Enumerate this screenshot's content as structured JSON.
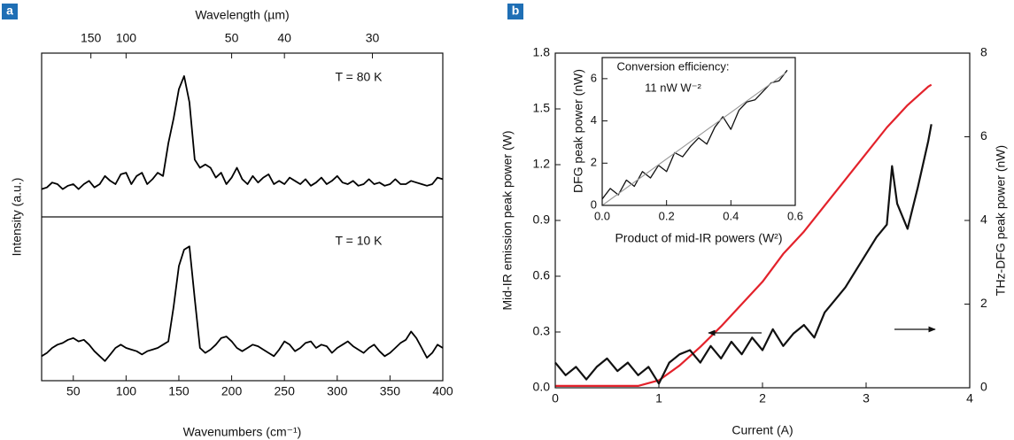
{
  "chart_data": [
    {
      "type": "line",
      "panel_label": "a",
      "stacked_panels": true,
      "xlabel": "Wavenumbers (cm⁻¹)",
      "x2label": "Wavelength (µm)",
      "ylabel": "Intensity (a.u.)",
      "x2_scale": "reciprocal-cm-um",
      "xlim": [
        20,
        400
      ],
      "xticks": [
        50,
        100,
        150,
        200,
        250,
        300,
        350,
        400
      ],
      "x2ticks": [
        150,
        100,
        50,
        40,
        30
      ],
      "ylim": [
        0,
        1
      ],
      "x": [
        20,
        25,
        30,
        35,
        40,
        45,
        50,
        55,
        60,
        65,
        70,
        75,
        80,
        85,
        90,
        95,
        100,
        105,
        110,
        115,
        120,
        125,
        130,
        135,
        140,
        145,
        150,
        155,
        160,
        165,
        170,
        175,
        180,
        185,
        190,
        195,
        200,
        205,
        210,
        215,
        220,
        225,
        230,
        235,
        240,
        245,
        250,
        255,
        260,
        265,
        270,
        275,
        280,
        285,
        290,
        295,
        300,
        305,
        310,
        315,
        320,
        325,
        330,
        335,
        340,
        345,
        350,
        355,
        360,
        365,
        370,
        375,
        380,
        385,
        390,
        395,
        400
      ],
      "series": [
        {
          "name": "T = 80 K",
          "color": "#000000",
          "values": [
            0.17,
            0.18,
            0.21,
            0.2,
            0.17,
            0.19,
            0.2,
            0.17,
            0.2,
            0.22,
            0.18,
            0.2,
            0.25,
            0.22,
            0.2,
            0.26,
            0.27,
            0.2,
            0.25,
            0.27,
            0.2,
            0.23,
            0.27,
            0.25,
            0.45,
            0.6,
            0.78,
            0.86,
            0.7,
            0.35,
            0.3,
            0.32,
            0.3,
            0.24,
            0.27,
            0.2,
            0.24,
            0.3,
            0.23,
            0.2,
            0.25,
            0.21,
            0.24,
            0.26,
            0.2,
            0.22,
            0.2,
            0.24,
            0.22,
            0.2,
            0.23,
            0.19,
            0.21,
            0.24,
            0.2,
            0.22,
            0.25,
            0.21,
            0.2,
            0.22,
            0.19,
            0.2,
            0.23,
            0.2,
            0.21,
            0.19,
            0.2,
            0.23,
            0.2,
            0.2,
            0.22,
            0.21,
            0.2,
            0.19,
            0.2,
            0.24,
            0.23
          ]
        },
        {
          "name": "T = 10 K",
          "color": "#000000",
          "values": [
            0.15,
            0.17,
            0.2,
            0.22,
            0.23,
            0.25,
            0.26,
            0.24,
            0.25,
            0.22,
            0.18,
            0.15,
            0.12,
            0.16,
            0.2,
            0.22,
            0.2,
            0.19,
            0.18,
            0.16,
            0.18,
            0.19,
            0.2,
            0.22,
            0.24,
            0.45,
            0.7,
            0.8,
            0.82,
            0.5,
            0.2,
            0.17,
            0.19,
            0.22,
            0.26,
            0.27,
            0.24,
            0.2,
            0.18,
            0.2,
            0.22,
            0.21,
            0.19,
            0.17,
            0.15,
            0.19,
            0.24,
            0.22,
            0.18,
            0.2,
            0.23,
            0.24,
            0.2,
            0.22,
            0.21,
            0.17,
            0.2,
            0.22,
            0.24,
            0.21,
            0.19,
            0.17,
            0.2,
            0.22,
            0.18,
            0.15,
            0.17,
            0.2,
            0.23,
            0.25,
            0.3,
            0.26,
            0.2,
            0.14,
            0.17,
            0.22,
            0.2
          ]
        }
      ]
    },
    {
      "type": "line",
      "panel_label": "b",
      "xlabel": "Current (A)",
      "ylabel": "Mid-IR emission peak power (W)",
      "y2label": "THz-DFG peak power (nW)",
      "xlim": [
        0,
        4
      ],
      "xticks": [
        0,
        1,
        2,
        3,
        4
      ],
      "ylim": [
        0,
        1.8
      ],
      "yticks": [
        {
          "value": 0,
          "label": "0.0"
        },
        0.3,
        0.6,
        0.9,
        1.2,
        1.5,
        1.8
      ],
      "y2lim": [
        0,
        8
      ],
      "y2ticks": [
        0,
        2,
        4,
        6,
        8
      ],
      "series": [
        {
          "color": "#e3222b",
          "x": [
            0,
            0.2,
            0.4,
            0.6,
            0.8,
            1.0,
            1.2,
            1.4,
            1.6,
            1.8,
            2.0,
            2.2,
            2.4,
            2.6,
            2.8,
            3.0,
            3.2,
            3.4,
            3.6,
            3.63
          ],
          "values": [
            0.01,
            0.01,
            0.01,
            0.01,
            0.01,
            0.04,
            0.12,
            0.22,
            0.33,
            0.45,
            0.57,
            0.72,
            0.84,
            0.98,
            1.12,
            1.26,
            1.4,
            1.52,
            1.62,
            1.63
          ]
        },
        {
          "color": "#111111",
          "axis": "y2",
          "x": [
            0,
            0.1,
            0.2,
            0.3,
            0.4,
            0.5,
            0.6,
            0.7,
            0.8,
            0.9,
            1.0,
            1.1,
            1.2,
            1.3,
            1.4,
            1.5,
            1.6,
            1.7,
            1.8,
            1.9,
            2.0,
            2.1,
            2.2,
            2.3,
            2.4,
            2.5,
            2.6,
            2.7,
            2.8,
            2.9,
            3.0,
            3.1,
            3.2,
            3.25,
            3.3,
            3.4,
            3.5,
            3.6,
            3.63
          ],
          "values": [
            0.6,
            0.3,
            0.5,
            0.2,
            0.5,
            0.7,
            0.4,
            0.6,
            0.3,
            0.5,
            0.1,
            0.6,
            0.8,
            0.9,
            0.6,
            1.0,
            0.7,
            1.1,
            0.8,
            1.2,
            0.9,
            1.4,
            1.0,
            1.3,
            1.5,
            1.2,
            1.8,
            2.1,
            2.4,
            2.8,
            3.2,
            3.6,
            3.9,
            5.3,
            4.4,
            3.8,
            4.8,
            5.9,
            6.3
          ]
        }
      ]
    },
    {
      "type": "line",
      "annotation": [
        "Conversion efficiency:",
        "11 nW W⁻²"
      ],
      "xlabel": "Product of mid-IR powers (W²)",
      "ylabel": "DFG peak power (nW)",
      "xlim": [
        0,
        0.6
      ],
      "xticks": [
        {
          "value": 0,
          "label": "0.0"
        },
        0.2,
        0.4,
        0.6
      ],
      "ylim": [
        0,
        7
      ],
      "yticks": [
        0,
        2,
        4,
        6
      ],
      "series": [
        {
          "color": "#111111",
          "x": [
            0,
            0.025,
            0.05,
            0.075,
            0.1,
            0.125,
            0.15,
            0.175,
            0.2,
            0.225,
            0.25,
            0.275,
            0.3,
            0.325,
            0.35,
            0.375,
            0.4,
            0.425,
            0.45,
            0.475,
            0.5,
            0.525,
            0.55,
            0.575
          ],
          "values": [
            0.3,
            0.8,
            0.5,
            1.2,
            0.9,
            1.6,
            1.3,
            1.9,
            1.6,
            2.5,
            2.3,
            2.8,
            3.2,
            2.9,
            3.7,
            4.2,
            3.6,
            4.5,
            4.9,
            5.0,
            5.4,
            5.8,
            5.9,
            6.4
          ]
        },
        {
          "color": "#999999",
          "x": [
            0,
            0.57
          ],
          "values": [
            0,
            6.27
          ]
        }
      ]
    }
  ]
}
